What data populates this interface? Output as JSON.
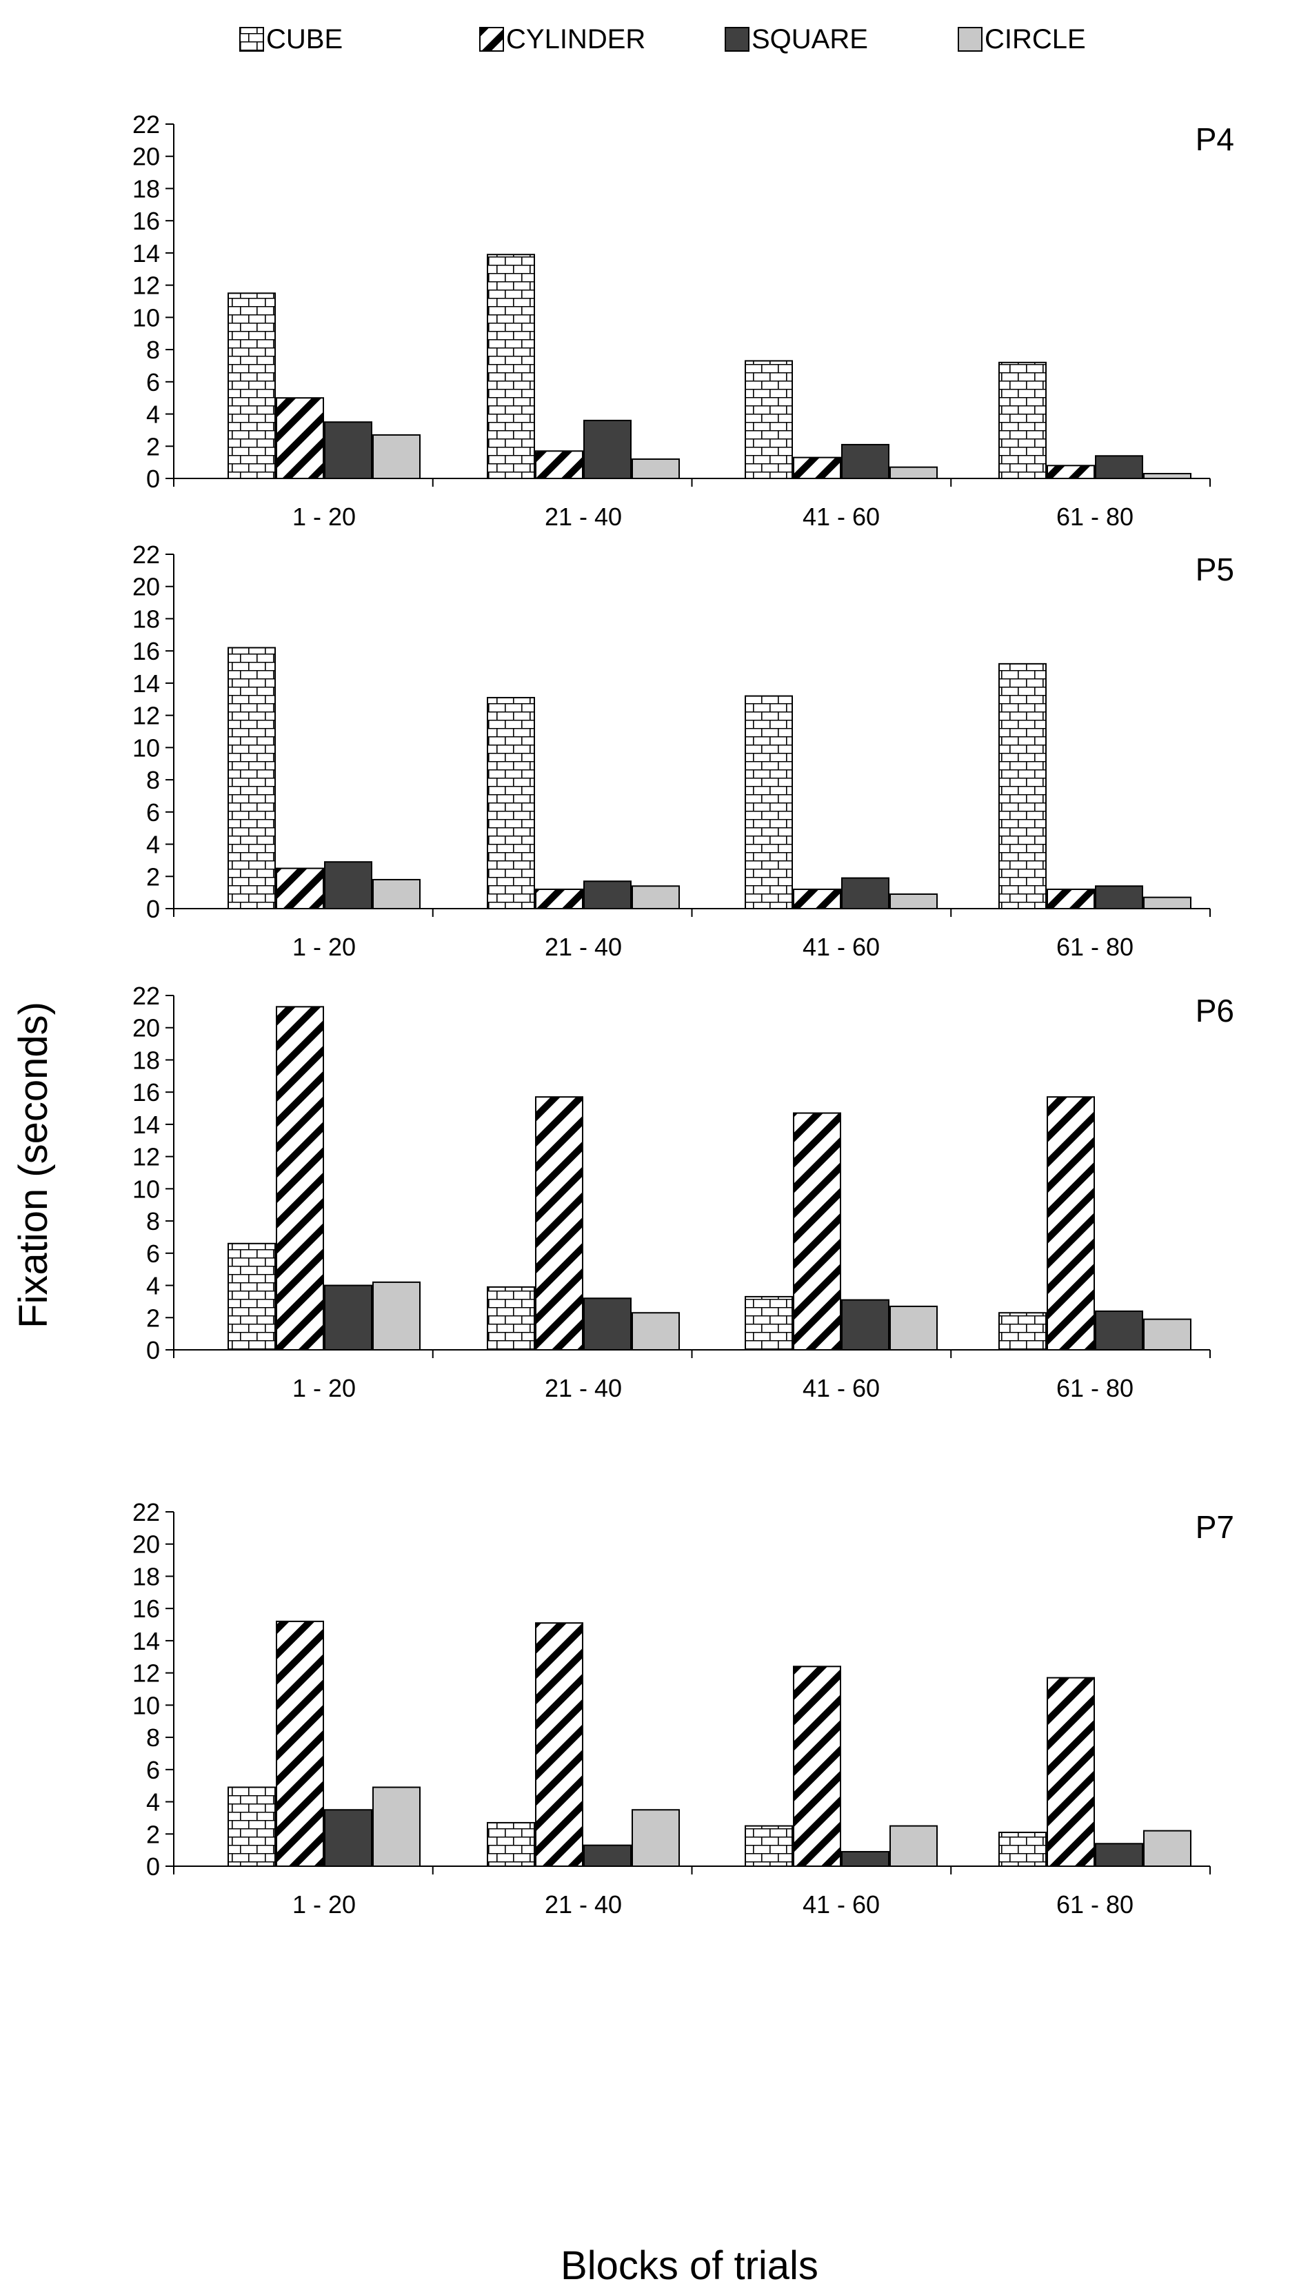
{
  "chart_data": {
    "type": "bar",
    "ylabel": "Fixation (seconds)",
    "xlabel": "Blocks of trials",
    "legend": [
      {
        "name": "CUBE",
        "pattern": "brick"
      },
      {
        "name": "CYLINDER",
        "pattern": "diagonal"
      },
      {
        "name": "SQUARE",
        "pattern": "solid-dark"
      },
      {
        "name": "CIRCLE",
        "pattern": "solid-light"
      }
    ],
    "legend_position": "top",
    "colors": {
      "square": "#404040",
      "circle": "#c8c8c8",
      "stroke": "#000000"
    },
    "ylim": [
      0,
      22
    ],
    "yticks": [
      0,
      2,
      4,
      6,
      8,
      10,
      12,
      14,
      16,
      18,
      20,
      22
    ],
    "categories": [
      "1 - 20",
      "21 - 40",
      "41 - 60",
      "61 - 80"
    ],
    "panels": [
      {
        "label": "P4",
        "series": [
          {
            "name": "CUBE",
            "values": [
              11.5,
              13.9,
              7.3,
              7.2
            ]
          },
          {
            "name": "CYLINDER",
            "values": [
              5.0,
              1.7,
              1.3,
              0.8
            ]
          },
          {
            "name": "SQUARE",
            "values": [
              3.5,
              3.6,
              2.1,
              1.4
            ]
          },
          {
            "name": "CIRCLE",
            "values": [
              2.7,
              1.2,
              0.7,
              0.3
            ]
          }
        ]
      },
      {
        "label": "P5",
        "series": [
          {
            "name": "CUBE",
            "values": [
              16.2,
              13.1,
              13.2,
              15.2
            ]
          },
          {
            "name": "CYLINDER",
            "values": [
              2.5,
              1.2,
              1.2,
              1.2
            ]
          },
          {
            "name": "SQUARE",
            "values": [
              2.9,
              1.7,
              1.9,
              1.4
            ]
          },
          {
            "name": "CIRCLE",
            "values": [
              1.8,
              1.4,
              0.9,
              0.7
            ]
          }
        ]
      },
      {
        "label": "P6",
        "series": [
          {
            "name": "CUBE",
            "values": [
              6.6,
              3.9,
              3.3,
              2.3
            ]
          },
          {
            "name": "CYLINDER",
            "values": [
              21.3,
              15.7,
              14.7,
              15.7
            ]
          },
          {
            "name": "SQUARE",
            "values": [
              4.0,
              3.2,
              3.1,
              2.4
            ]
          },
          {
            "name": "CIRCLE",
            "values": [
              4.2,
              2.3,
              2.7,
              1.9
            ]
          }
        ]
      },
      {
        "label": "P7",
        "series": [
          {
            "name": "CUBE",
            "values": [
              4.9,
              2.7,
              2.5,
              2.1
            ]
          },
          {
            "name": "CYLINDER",
            "values": [
              15.2,
              15.1,
              12.4,
              11.7
            ]
          },
          {
            "name": "SQUARE",
            "values": [
              3.5,
              1.3,
              0.9,
              1.4
            ]
          },
          {
            "name": "CIRCLE",
            "values": [
              4.9,
              3.5,
              2.5,
              2.2
            ]
          }
        ]
      }
    ]
  }
}
